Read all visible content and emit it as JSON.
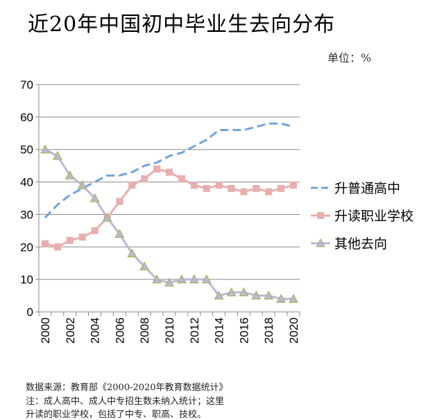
{
  "chart_data": {
    "type": "line",
    "title": "近20年中国初中毕业生去向分布",
    "unit_label": "单位：%",
    "xlabel": "",
    "ylabel": "",
    "ylim": [
      0,
      70
    ],
    "yticks": [
      0,
      10,
      20,
      30,
      40,
      50,
      60,
      70
    ],
    "x": [
      2000,
      2001,
      2002,
      2003,
      2004,
      2005,
      2006,
      2007,
      2008,
      2009,
      2010,
      2011,
      2012,
      2013,
      2014,
      2015,
      2016,
      2017,
      2018,
      2019,
      2020
    ],
    "xtick_labels": [
      "2000",
      "2002",
      "2004",
      "2006",
      "2008",
      "2010",
      "2012",
      "2014",
      "2016",
      "2018",
      "2020"
    ],
    "grid": true,
    "legend": "right",
    "series": [
      {
        "name": "升普通高中",
        "color": "#6fa2dc",
        "style": "dashed",
        "values": [
          29,
          33,
          36,
          38,
          40,
          42,
          42,
          43,
          45,
          46,
          48,
          49,
          51,
          53,
          56,
          56,
          56,
          57,
          58,
          58,
          57
        ]
      },
      {
        "name": "升读职业学校",
        "color": "#e8aeae",
        "style": "square",
        "values": [
          21,
          20,
          22,
          23,
          25,
          29,
          34,
          39,
          41,
          44,
          43,
          41,
          39,
          38,
          39,
          38,
          37,
          38,
          37,
          38,
          39
        ]
      },
      {
        "name": "其他去向",
        "color": "#c3b3d6",
        "style": "triangle",
        "values": [
          50,
          48,
          42,
          39,
          35,
          29,
          24,
          18,
          14,
          10,
          9,
          10,
          10,
          10,
          5,
          6,
          6,
          5,
          5,
          4,
          4
        ]
      }
    ]
  },
  "notes": {
    "source": "数据来源：教育部《2000-2020年教育数据统计》",
    "note1": "注：成人高中、成人中专招生数未纳入统计；这里",
    "note2": "升读的职业学校，包括了中专、职高、技校。"
  }
}
